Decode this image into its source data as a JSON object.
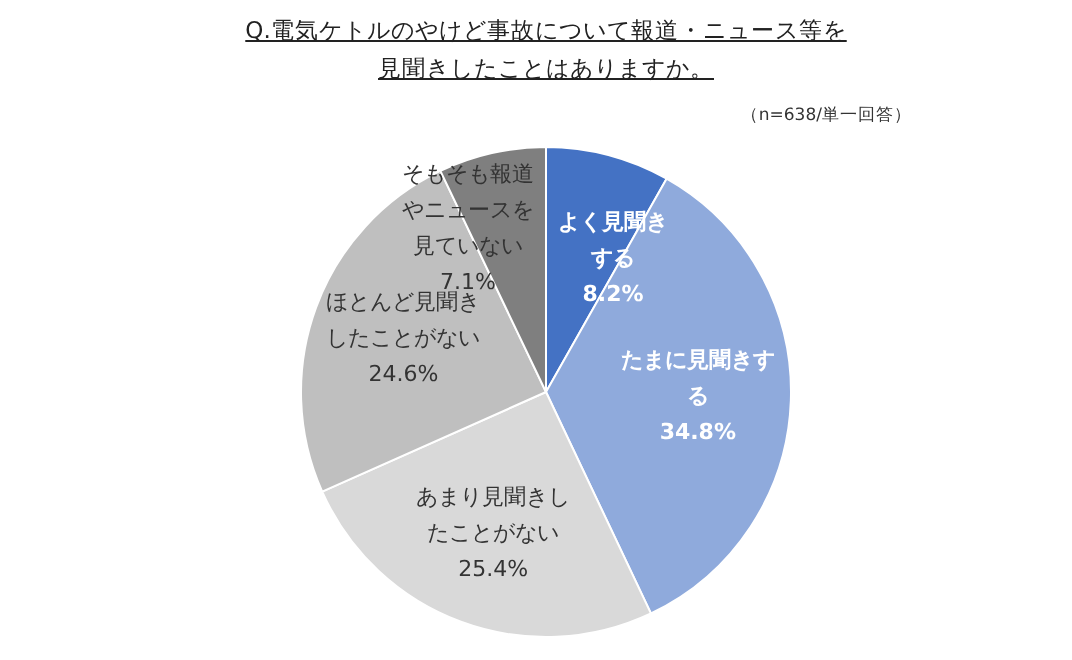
{
  "chart_data": {
    "type": "pie",
    "title": "Q.電気ケトルのやけど事故について報道・ニュース等を見聞きしたことはありますか。",
    "annotations": [
      "（n=638/単一回答）"
    ],
    "categories": [
      "よく見聞きする",
      "たまに見聞きする",
      "あまり見聞きしたことがない",
      "ほとんど見聞きしたことがない",
      "そもそも報道やニュースを見ていない"
    ],
    "values": [
      8.2,
      34.8,
      25.4,
      24.6,
      7.1
    ],
    "value_labels": [
      "8.2%",
      "34.8%",
      "25.4%",
      "24.6%",
      "7.1%"
    ],
    "colors": [
      "#4472c4",
      "#8faadc",
      "#d9d9d9",
      "#bfbfbf",
      "#7f7f7f"
    ],
    "legend": false
  }
}
